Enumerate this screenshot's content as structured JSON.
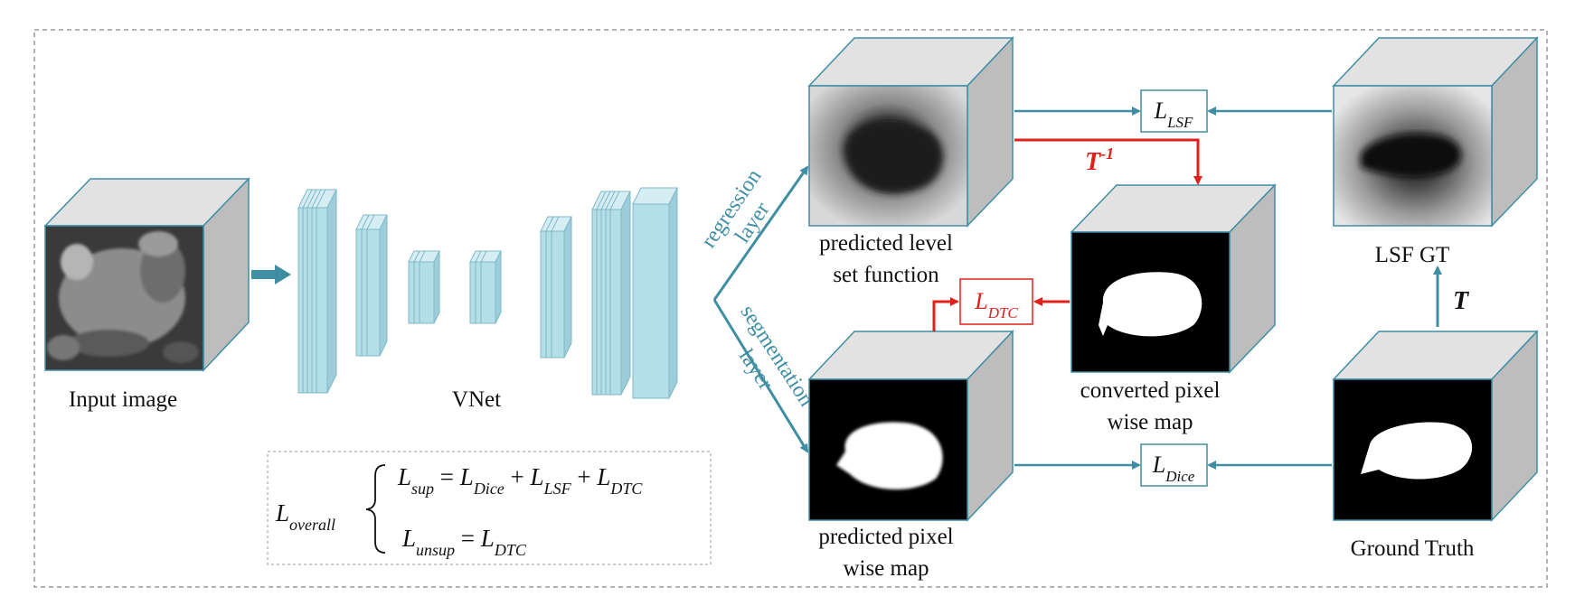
{
  "captions": {
    "input_image": "Input image",
    "vnet": "VNet",
    "pred_lsf_line1": "predicted level",
    "pred_lsf_line2": "set function",
    "pred_pixel_line1": "predicted pixel",
    "pred_pixel_line2": "wise map",
    "converted_line1": "converted pixel",
    "converted_line2": "wise map",
    "lsf_gt": "LSF GT",
    "ground_truth": "Ground Truth"
  },
  "branch_labels": {
    "regression_line1": "regression",
    "regression_line2": "layer",
    "segmentation_line1": "segmentation",
    "segmentation_line2": "layer"
  },
  "losses": {
    "lsf": {
      "main": "L",
      "sub": "LSF"
    },
    "dtc": {
      "main": "L",
      "sub": "DTC"
    },
    "dice": {
      "main": "L",
      "sub": "Dice"
    }
  },
  "transforms": {
    "inverse": {
      "main": "T",
      "sup": "-1"
    },
    "forward": {
      "main": "T"
    }
  },
  "formula": {
    "overall": {
      "main": "L",
      "sub": "overall"
    },
    "sup": {
      "lhs_sub": "sup",
      "eq": " = ",
      "plus": " + ",
      "t1_sub": "Dice",
      "t2_sub": "LSF",
      "t3_sub": "DTC"
    },
    "unsup": {
      "lhs_sub": "unsup",
      "eq": " = ",
      "t1_sub": "DTC"
    }
  },
  "colors": {
    "teal": "#3f8ea4",
    "red": "#e0201b",
    "vnet_block": "#b5dfe8",
    "cube_top": "#e2e2e2",
    "cube_side": "#bdbdbd"
  }
}
